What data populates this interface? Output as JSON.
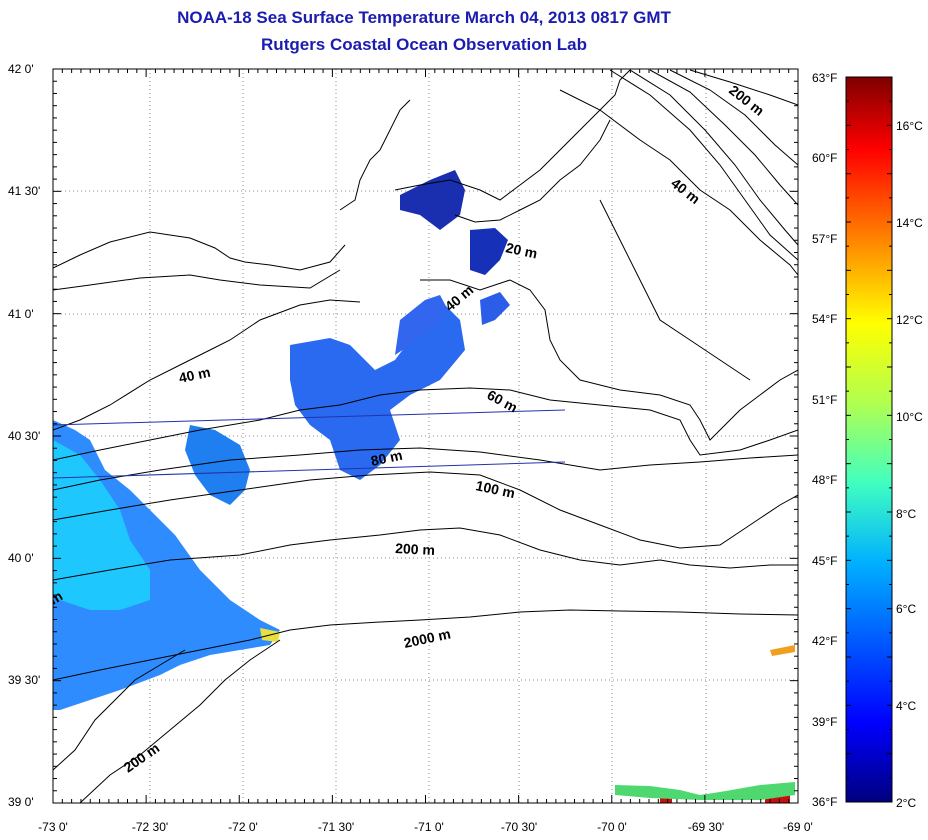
{
  "titles": {
    "line1": "NOAA-18 Sea Surface Temperature March 04, 2013 0817 GMT",
    "line2": "Rutgers Coastal Ocean Observation Lab"
  },
  "lat_labels": [
    "42 0'",
    "41 30'",
    "41 0'",
    "40 30'",
    "40 0'",
    "39 30'",
    "39 0'"
  ],
  "lon_labels": [
    "-73 0'",
    "-72 30'",
    "-72 0'",
    "-71 30'",
    "-71 0'",
    "-70 30'",
    "-70 0'",
    "-69 30'",
    "-69 0'"
  ],
  "fahrenheit_labels": [
    "63°F",
    "60°F",
    "57°F",
    "54°F",
    "51°F",
    "48°F",
    "45°F",
    "42°F",
    "39°F",
    "36°F"
  ],
  "celsius_labels": [
    "16°C",
    "14°C",
    "12°C",
    "10°C",
    "8°C",
    "6°C",
    "4°C",
    "2°C"
  ],
  "contour_labels": {
    "c200_ne": "200 m",
    "c40_ne": "40 m",
    "c20": "20 m",
    "c40_mid": "40 m",
    "c40_w": "40 m",
    "c60": "60 m",
    "c80": "80 m",
    "c100": "100 m",
    "c200_mid": "200 m",
    "c2000": "2000 m",
    "c200_sw": "200 m",
    "c_partial": "m"
  },
  "colorbar": {
    "min_c": 2,
    "max_c": 17,
    "colors": [
      "#00007f",
      "#0000ff",
      "#007fff",
      "#00ffff",
      "#7fff7f",
      "#ffff00",
      "#ff7f00",
      "#ff0000",
      "#7f0000"
    ]
  }
}
